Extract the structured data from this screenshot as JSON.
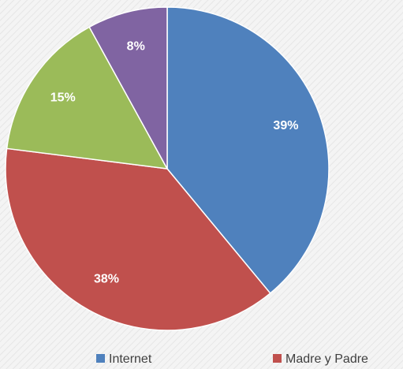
{
  "chart_data": {
    "type": "pie",
    "categories": [
      "Internet",
      "Madre y Padre",
      null,
      null
    ],
    "values": [
      39,
      38,
      15,
      8
    ],
    "value_labels": [
      "39%",
      "38%",
      "15%",
      "8%"
    ],
    "colors": [
      "#4f81bd",
      "#c0504d",
      "#9bbb59",
      "#8064a2"
    ],
    "legend": "bottom"
  }
}
